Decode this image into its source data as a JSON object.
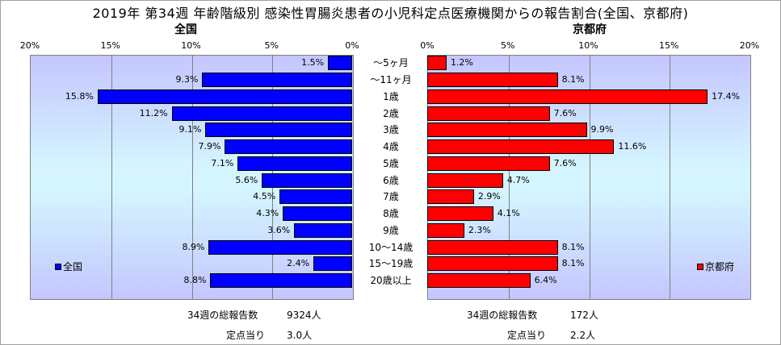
{
  "title": "2019年 第34週 年齢階級別 感染性胃腸炎患者の小児科定点医療機関からの報告割合(全国、京都府)",
  "chart_data": {
    "type": "bar",
    "orientation": "horizontal-back-to-back",
    "categories": [
      "～5ヶ月",
      "～11ヶ月",
      "1歳",
      "2歳",
      "3歳",
      "4歳",
      "5歳",
      "6歳",
      "7歳",
      "8歳",
      "9歳",
      "10～14歳",
      "15～19歳",
      "20歳以上"
    ],
    "series": [
      {
        "name": "全国",
        "color": "#0000ff",
        "values": [
          1.5,
          9.3,
          15.8,
          11.2,
          9.1,
          7.9,
          7.1,
          5.6,
          4.5,
          4.3,
          3.6,
          8.9,
          2.4,
          8.8
        ]
      },
      {
        "name": "京都府",
        "color": "#ff0000",
        "values": [
          1.2,
          8.1,
          17.4,
          7.6,
          9.9,
          11.6,
          7.6,
          4.7,
          2.9,
          4.1,
          2.3,
          8.1,
          8.1,
          6.4
        ]
      }
    ],
    "panel_titles": [
      "全国",
      "京都府"
    ],
    "x_ticks": [
      "0%",
      "5%",
      "10%",
      "15%",
      "20%"
    ],
    "xlim": [
      0,
      20
    ],
    "grid": true
  },
  "footer": {
    "left": {
      "total_label": "34週の総報告数",
      "total_value": "9324人",
      "per_label": "定点当り",
      "per_value": "3.0人"
    },
    "right": {
      "total_label": "34週の総報告数",
      "total_value": "172人",
      "per_label": "定点当り",
      "per_value": "2.2人"
    }
  }
}
